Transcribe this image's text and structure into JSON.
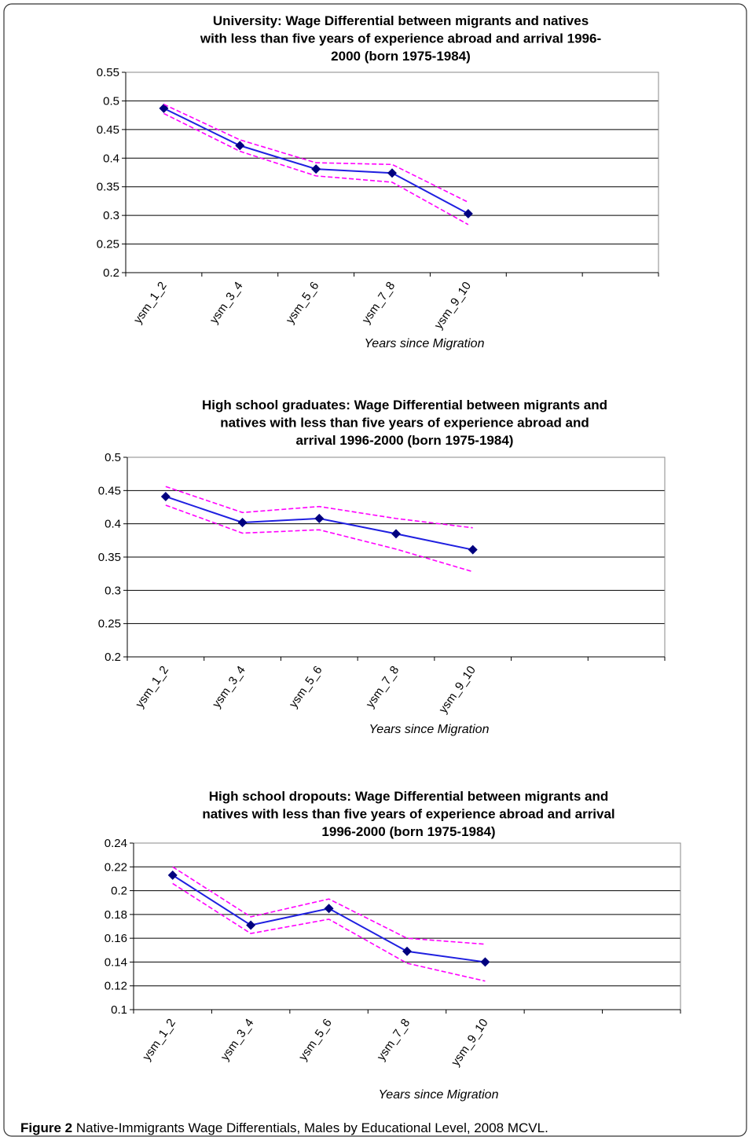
{
  "chart_data": [
    {
      "type": "line",
      "title": [
        "University: Wage Differential between migrants and natives",
        "with less than five years of experience abroad and arrival 1996-",
        "2000 (born 1975-1984)"
      ],
      "x_label": "Years since Migration",
      "categories": [
        "ysm_1_2",
        "ysm_3_4",
        "ysm_5_6",
        "ysm_7_8",
        "ysm_9_10",
        null,
        null
      ],
      "series": [
        {
          "color": "#1f1fe0",
          "marker_color": "#00007f",
          "markers": true,
          "dashed": false,
          "values": [
            0.487,
            0.422,
            0.381,
            0.374,
            0.303,
            null,
            null
          ]
        },
        {
          "color": "#ff00ff",
          "markers": false,
          "dashed": true,
          "values": [
            0.494,
            0.432,
            0.392,
            0.389,
            0.323,
            null,
            null
          ]
        },
        {
          "color": "#ff00ff",
          "markers": false,
          "dashed": true,
          "values": [
            0.478,
            0.412,
            0.369,
            0.358,
            0.284,
            null,
            null
          ]
        }
      ],
      "ylim": [
        0.2,
        0.55
      ],
      "yticks": [
        0.2,
        0.25,
        0.3,
        0.35,
        0.4,
        0.45,
        0.5,
        0.55
      ],
      "grid": true
    },
    {
      "type": "line",
      "title": [
        "High school graduates: Wage Differential between migrants and",
        "natives  with less than five years of experience abroad and",
        "arrival 1996-2000 (born 1975-1984)"
      ],
      "x_label": "Years since Migration",
      "categories": [
        "ysm_1_2",
        "ysm_3_4",
        "ysm_5_6",
        "ysm_7_8",
        "ysm_9_10",
        null,
        null
      ],
      "series": [
        {
          "color": "#1f1fe0",
          "marker_color": "#00007f",
          "markers": true,
          "dashed": false,
          "values": [
            0.441,
            0.402,
            0.408,
            0.385,
            0.361,
            null,
            null
          ]
        },
        {
          "color": "#ff00ff",
          "markers": false,
          "dashed": true,
          "values": [
            0.456,
            0.417,
            0.426,
            0.408,
            0.394,
            null,
            null
          ]
        },
        {
          "color": "#ff00ff",
          "markers": false,
          "dashed": true,
          "values": [
            0.428,
            0.386,
            0.391,
            0.362,
            0.328,
            null,
            null
          ]
        }
      ],
      "ylim": [
        0.2,
        0.5
      ],
      "yticks": [
        0.2,
        0.25,
        0.3,
        0.35,
        0.4,
        0.45,
        0.5
      ],
      "grid": true
    },
    {
      "type": "line",
      "title": [
        "High school dropouts: Wage Differential between migrants and",
        "natives  with less than five years of experience abroad and arrival",
        "1996-2000 (born 1975-1984)"
      ],
      "x_label": "Years since Migration",
      "categories": [
        "ysm_1_2",
        "ysm_3_4",
        "ysm_5_6",
        "ysm_7_8",
        "ysm_9_10",
        null,
        null
      ],
      "series": [
        {
          "color": "#1f1fe0",
          "marker_color": "#00007f",
          "markers": true,
          "dashed": false,
          "values": [
            0.213,
            0.171,
            0.185,
            0.149,
            0.14,
            null,
            null
          ]
        },
        {
          "color": "#ff00ff",
          "markers": false,
          "dashed": true,
          "values": [
            0.22,
            0.178,
            0.193,
            0.16,
            0.155,
            null,
            null
          ]
        },
        {
          "color": "#ff00ff",
          "markers": false,
          "dashed": true,
          "values": [
            0.206,
            0.164,
            0.176,
            0.139,
            0.124,
            null,
            null
          ]
        }
      ],
      "ylim": [
        0.1,
        0.24
      ],
      "yticks": [
        0.1,
        0.12,
        0.14,
        0.16,
        0.18,
        0.2,
        0.22,
        0.24
      ],
      "grid": true
    }
  ],
  "figure": {
    "label": "Figure 2",
    "caption": "Native-Immigrants Wage Differentials, Males by Educational Level, 2008 MCVL."
  }
}
